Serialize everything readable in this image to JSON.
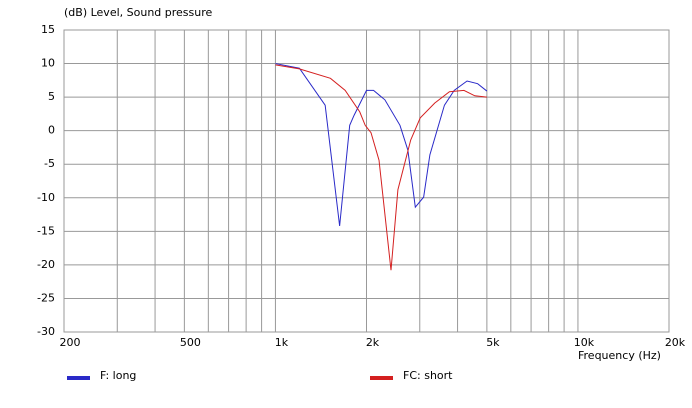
{
  "chart_data": {
    "type": "line",
    "title": "(dB)  Level, Sound pressure",
    "x_label": "Frequency  (Hz)",
    "log_x": true,
    "grid": true,
    "legend": "bottom",
    "xlim": [
      200,
      20000
    ],
    "xticks": [
      200,
      500,
      {
        "value": 1000,
        "label": "1k"
      },
      {
        "value": 2000,
        "label": "2k"
      },
      {
        "value": 5000,
        "label": "5k"
      },
      {
        "value": 10000,
        "label": "10k"
      },
      {
        "value": 20000,
        "label": "20k"
      }
    ],
    "xgrid": [
      300,
      400,
      600,
      700,
      800,
      900,
      3000,
      4000,
      6000,
      7000,
      8000,
      9000
    ],
    "ylim": [
      -30,
      15
    ],
    "yticks": [
      -30,
      -25,
      -20,
      -15,
      -10,
      -5,
      0,
      5,
      10,
      15
    ],
    "series": [
      {
        "name": "F: long",
        "color": "#2a2ac8",
        "x": [
          1000,
          1200,
          1460,
          1630,
          1760,
          1820,
          2000,
          2110,
          2300,
          2580,
          2740,
          2900,
          3090,
          3240,
          3620,
          3900,
          4300,
          4660,
          5000
        ],
        "values": [
          10,
          9.3,
          3.8,
          -14.2,
          0.8,
          2.3,
          6,
          6,
          4.6,
          0.8,
          -2.9,
          -11.4,
          -9.9,
          -3.6,
          3.8,
          6,
          7.4,
          7,
          5.9
        ]
      },
      {
        "name": "FC: short",
        "color": "#d42020",
        "x": [
          1000,
          1200,
          1520,
          1700,
          1900,
          1980,
          2070,
          2200,
          2410,
          2540,
          2800,
          3010,
          3360,
          3760,
          4200,
          4560,
          5000
        ],
        "values": [
          9.8,
          9.2,
          7.8,
          6,
          2.8,
          0.8,
          -0.3,
          -4.4,
          -20.8,
          -8.8,
          -1.4,
          1.9,
          4.1,
          5.8,
          6,
          5.2,
          5
        ]
      }
    ]
  }
}
